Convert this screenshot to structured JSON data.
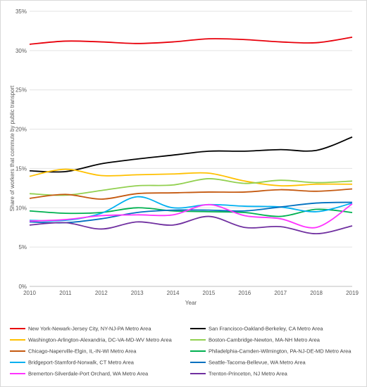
{
  "chart_data": {
    "type": "line",
    "title": "",
    "xlabel": "Year",
    "ylabel": "Share of workers that commute by public transport",
    "x": [
      2010,
      2011,
      2012,
      2013,
      2014,
      2015,
      2016,
      2017,
      2018,
      2019
    ],
    "y_ticks": [
      "0%",
      "5%",
      "10%",
      "15%",
      "20%",
      "25%",
      "30%",
      "35%"
    ],
    "ylim": [
      0,
      35
    ],
    "y_unit": "%",
    "grid": "horizontal",
    "legend_position": "bottom",
    "series": [
      {
        "name": "New York-Newark-Jersey City, NY-NJ-PA Metro Area",
        "color": "#e8000b",
        "values": [
          30.8,
          31.2,
          31.1,
          30.9,
          31.1,
          31.5,
          31.4,
          31.1,
          31.0,
          31.7
        ]
      },
      {
        "name": "San Francisco-Oakland-Berkeley, CA Metro Area",
        "color": "#000000",
        "values": [
          14.7,
          14.6,
          15.6,
          16.2,
          16.7,
          17.2,
          17.2,
          17.4,
          17.3,
          19.0
        ]
      },
      {
        "name": "Washington-Arlington-Alexandria, DC-VA-MD-WV Metro Area",
        "color": "#ffc000",
        "values": [
          14.0,
          14.9,
          14.1,
          14.2,
          14.3,
          14.4,
          13.4,
          12.8,
          13.0,
          13.0
        ]
      },
      {
        "name": "Boston-Cambridge-Newton, MA-NH Metro Area",
        "color": "#92d050",
        "values": [
          11.8,
          11.6,
          12.2,
          12.8,
          12.9,
          13.7,
          13.1,
          13.5,
          13.2,
          13.4
        ]
      },
      {
        "name": "Chicago-Naperville-Elgin, IL-IN-WI Metro Area",
        "color": "#c55a11",
        "values": [
          11.2,
          11.7,
          11.1,
          11.8,
          11.9,
          12.0,
          12.0,
          12.3,
          12.1,
          12.4
        ]
      },
      {
        "name": "Philadelphia-Camden-Wilmington, PA-NJ-DE-MD Metro Area",
        "color": "#00b050",
        "values": [
          9.6,
          9.3,
          9.4,
          10.0,
          9.6,
          9.5,
          9.4,
          8.9,
          9.8,
          9.4
        ]
      },
      {
        "name": "Bridgeport-Stamford-Norwalk, CT Metro Area",
        "color": "#00b0f0",
        "values": [
          8.4,
          8.4,
          9.3,
          11.4,
          10.0,
          10.4,
          10.2,
          10.1,
          9.5,
          10.6
        ]
      },
      {
        "name": "Seattle-Tacoma-Bellevue, WA Metro Area",
        "color": "#0070c0",
        "values": [
          8.2,
          8.1,
          8.6,
          9.4,
          9.7,
          9.7,
          9.6,
          10.1,
          10.6,
          10.7
        ]
      },
      {
        "name": "Bremerton-Silverdale-Port Orchard, WA Metro Area",
        "color": "#ff33ff",
        "values": [
          8.3,
          8.5,
          9.0,
          9.1,
          9.1,
          10.4,
          9.0,
          8.6,
          7.5,
          10.5
        ]
      },
      {
        "name": "Trenton-Princeton, NJ Metro Area",
        "color": "#7030a0",
        "values": [
          7.8,
          8.1,
          7.3,
          8.2,
          7.8,
          8.9,
          7.5,
          7.6,
          6.7,
          7.7
        ]
      }
    ]
  }
}
